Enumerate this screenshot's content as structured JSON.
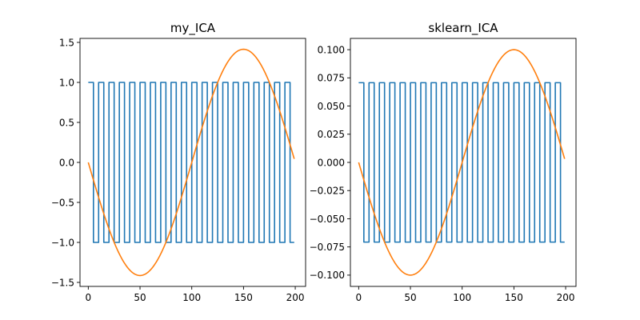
{
  "chart_data": [
    {
      "type": "line",
      "title": "my_ICA",
      "xlabel": "",
      "ylabel": "",
      "xlim": [
        -8,
        210
      ],
      "ylim": [
        -1.55,
        1.55
      ],
      "x_ticks": [
        0,
        50,
        100,
        150,
        200
      ],
      "x_tick_labels": [
        "0",
        "50",
        "100",
        "150",
        "200"
      ],
      "y_ticks": [
        -1.5,
        -1.0,
        -0.5,
        0.0,
        0.5,
        1.0,
        1.5
      ],
      "y_tick_labels": [
        "−1.5",
        "−1.0",
        "−0.5",
        "0.0",
        "0.5",
        "1.0",
        "1.5"
      ],
      "grid": false,
      "series": [
        {
          "kind": "square",
          "color": "#1f77b4",
          "x_start": 0,
          "x_end": 199,
          "high": 1.0,
          "low": -1.0,
          "transitions_x": [
            5,
            10,
            15,
            20,
            25,
            30,
            35,
            40,
            45,
            50,
            55,
            60,
            65,
            70,
            75,
            80,
            85,
            90,
            95,
            100,
            105,
            110,
            115,
            120,
            125,
            130,
            135,
            140,
            145,
            150,
            155,
            160,
            165,
            170,
            175,
            180,
            185,
            190,
            195
          ],
          "starts_high": true
        },
        {
          "kind": "sine",
          "color": "#ff7f0e",
          "x_start": 0,
          "x_end": 199,
          "amplitude": -1.414,
          "period": 200
        }
      ]
    },
    {
      "type": "line",
      "title": "sklearn_ICA",
      "xlabel": "",
      "ylabel": "",
      "xlim": [
        -8,
        210
      ],
      "ylim": [
        -0.11,
        0.11
      ],
      "x_ticks": [
        0,
        50,
        100,
        150,
        200
      ],
      "x_tick_labels": [
        "0",
        "50",
        "100",
        "150",
        "200"
      ],
      "y_ticks": [
        -0.1,
        -0.075,
        -0.05,
        -0.025,
        0.0,
        0.025,
        0.05,
        0.075,
        0.1
      ],
      "y_tick_labels": [
        "−0.100",
        "−0.075",
        "−0.050",
        "−0.025",
        "0.000",
        "0.025",
        "0.050",
        "0.075",
        "0.100"
      ],
      "grid": false,
      "series": [
        {
          "kind": "square",
          "color": "#1f77b4",
          "x_start": 0,
          "x_end": 199,
          "high": 0.0707,
          "low": -0.0707,
          "transitions_x": [
            5,
            10,
            15,
            20,
            25,
            30,
            35,
            40,
            45,
            50,
            55,
            60,
            65,
            70,
            75,
            80,
            85,
            90,
            95,
            100,
            105,
            110,
            115,
            120,
            125,
            130,
            135,
            140,
            145,
            150,
            155,
            160,
            165,
            170,
            175,
            180,
            185,
            190,
            195
          ],
          "starts_high": true
        },
        {
          "kind": "sine",
          "color": "#ff7f0e",
          "x_start": 0,
          "x_end": 199,
          "amplitude": -0.1,
          "period": 200
        }
      ]
    }
  ]
}
